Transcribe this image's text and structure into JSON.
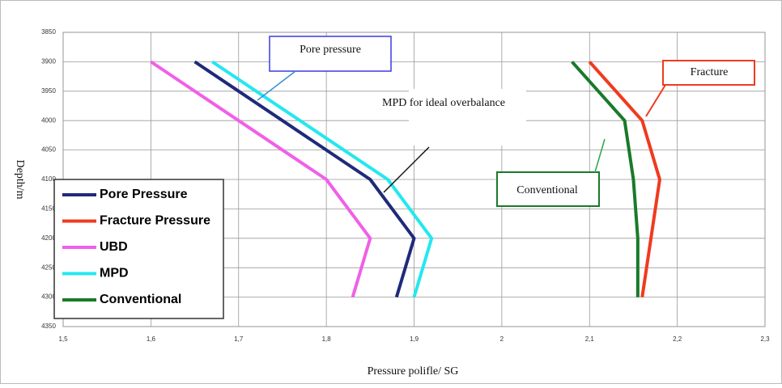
{
  "chart_data": {
    "type": "line",
    "xlabel": "Pressure polifle/ SG",
    "ylabel": "Depth/m",
    "y": [
      3900,
      4000,
      4100,
      4200,
      4300
    ],
    "series": [
      {
        "name": "Pore Pressure",
        "color": "#1f2a7a",
        "values": [
          1.65,
          1.75,
          1.85,
          1.9,
          1.88
        ]
      },
      {
        "name": "Fracture Pressure",
        "color": "#f03a1e",
        "values": [
          2.1,
          2.16,
          2.18,
          2.17,
          2.16
        ]
      },
      {
        "name": "UBD",
        "color": "#f060e8",
        "values": [
          1.6,
          1.7,
          1.8,
          1.85,
          1.83
        ]
      },
      {
        "name": "MPD",
        "color": "#22e8f0",
        "values": [
          1.67,
          1.77,
          1.87,
          1.92,
          1.9
        ]
      },
      {
        "name": "Conventional",
        "color": "#1a7a2a",
        "values": [
          2.08,
          2.14,
          2.15,
          2.155,
          2.155
        ]
      }
    ],
    "xlim": [
      1.5,
      2.3
    ],
    "xticks": [
      {
        "value": 1.5,
        "label": "1,5"
      },
      {
        "value": 1.6,
        "label": "1,6"
      },
      {
        "value": 1.7,
        "label": "1,7"
      },
      {
        "value": 1.8,
        "label": "1,8"
      },
      {
        "value": 1.9,
        "label": "1,9"
      },
      2,
      {
        "value": 2.1,
        "label": "2,1"
      },
      {
        "value": 2.2,
        "label": "2,2"
      },
      {
        "value": 2.3,
        "label": "2,3"
      }
    ],
    "ylim": [
      3850,
      4350
    ],
    "yticks": [
      3850,
      3900,
      3950,
      4000,
      4050,
      4100,
      4150,
      4200,
      4250,
      4300,
      4350
    ],
    "y_inverted": true,
    "grid": true,
    "legend": "bottom-left",
    "annotations": [
      "Pore pressure",
      "MPD for ideal overbalance",
      "Fracture",
      "Conventional"
    ]
  }
}
